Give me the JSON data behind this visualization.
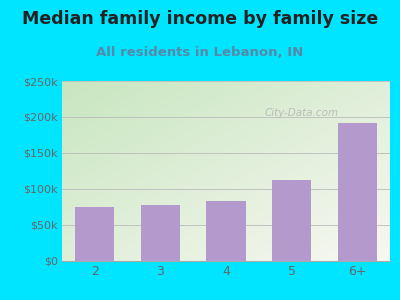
{
  "title": "Median family income by family size",
  "subtitle": "All residents in Lebanon, IN",
  "categories": [
    "2",
    "3",
    "4",
    "5",
    "6+"
  ],
  "values": [
    75000,
    78000,
    84000,
    112000,
    191000
  ],
  "bar_color": "#b399cc",
  "background_outer": "#00e5ff",
  "background_inner_topleft": "#c8e6c0",
  "background_inner_bottomright": "#f8f8f2",
  "title_color": "#222222",
  "subtitle_color": "#5588aa",
  "tick_label_color": "#666666",
  "ylim": [
    0,
    250000
  ],
  "yticks": [
    0,
    50000,
    100000,
    150000,
    200000,
    250000
  ],
  "ytick_labels": [
    "$0",
    "$50k",
    "$100k",
    "$150k",
    "$200k",
    "$250k"
  ],
  "watermark": "City-Data.com",
  "title_fontsize": 12.5,
  "subtitle_fontsize": 9.5
}
